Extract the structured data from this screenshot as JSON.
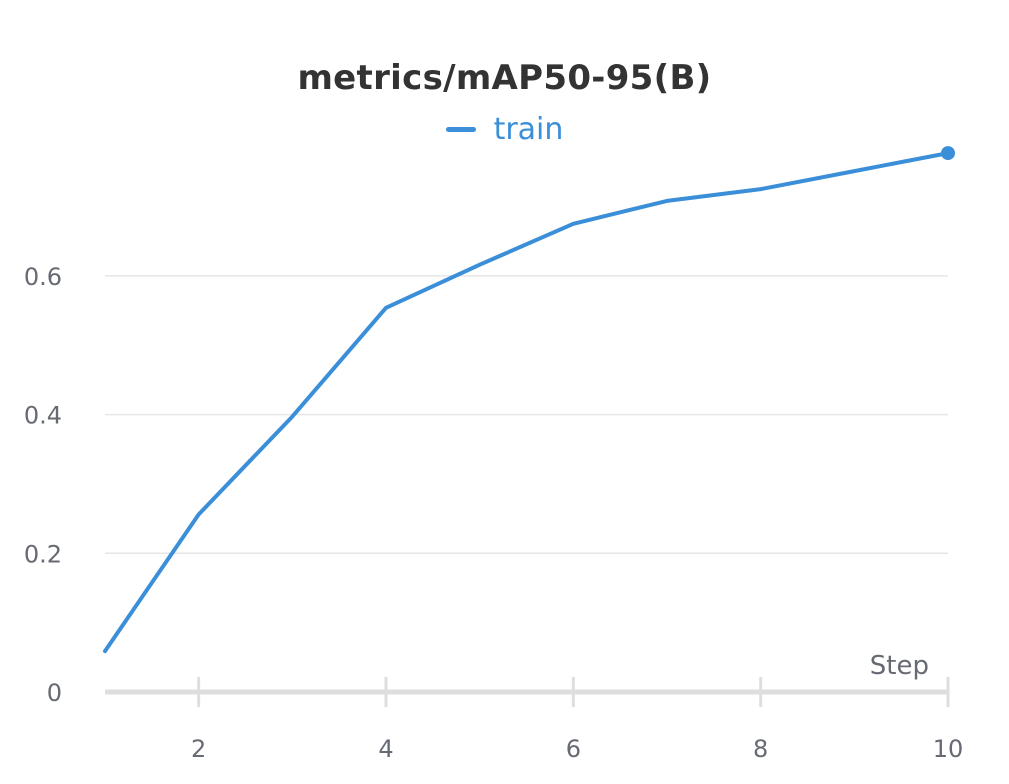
{
  "chart_data": {
    "type": "line",
    "title": "metrics/mAP50-95(B)",
    "xlabel": "Step",
    "ylabel": "",
    "xlim": [
      1,
      10
    ],
    "ylim": [
      0,
      0.78
    ],
    "xticks": [
      2,
      4,
      6,
      8,
      10
    ],
    "yticks": [
      0,
      0.2,
      0.4,
      0.6
    ],
    "xtick_labels": [
      "2",
      "4",
      "6",
      "8",
      "10"
    ],
    "ytick_labels": [
      "0",
      "0.2",
      "0.4",
      "0.6"
    ],
    "grid": true,
    "legend_position": "top-center",
    "series": [
      {
        "name": "train",
        "color": "#3b8fd9",
        "x": [
          1,
          2,
          3,
          4,
          5,
          6,
          7,
          8,
          9,
          10
        ],
        "y": [
          0.059,
          0.256,
          0.397,
          0.554,
          0.616,
          0.675,
          0.708,
          0.725,
          0.751,
          0.777
        ]
      }
    ]
  }
}
